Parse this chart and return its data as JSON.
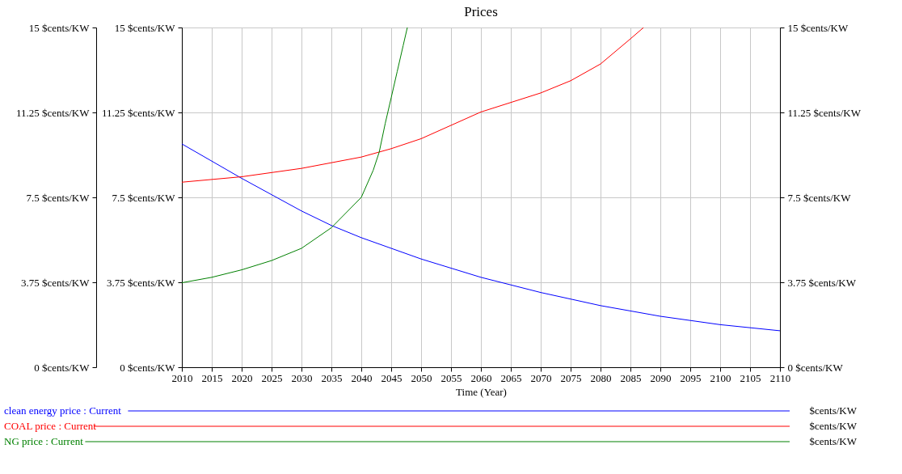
{
  "chart_data": {
    "type": "line",
    "title": "Prices",
    "xlabel": "Time (Year)",
    "xlim": [
      2010,
      2110
    ],
    "xticks": [
      2010,
      2015,
      2020,
      2025,
      2030,
      2035,
      2040,
      2045,
      2050,
      2055,
      2060,
      2065,
      2070,
      2075,
      2080,
      2085,
      2090,
      2095,
      2100,
      2105,
      2110
    ],
    "ylim": [
      0,
      15
    ],
    "yticks": [
      {
        "value": 0,
        "label": "0 $cents/KW"
      },
      {
        "value": 3.75,
        "label": "3.75 $cents/KW"
      },
      {
        "value": 7.5,
        "label": "7.5 $cents/KW"
      },
      {
        "value": 11.25,
        "label": "11.25 $cents/KW"
      },
      {
        "value": 15,
        "label": "15 $cents/KW"
      }
    ],
    "y2lim": [
      0,
      15
    ],
    "y2ticks": [
      {
        "value": 0,
        "label": "0 $cents/KW"
      },
      {
        "value": 3.75,
        "label": "3.75 $cents/KW"
      },
      {
        "value": 7.5,
        "label": "7.5 $cents/KW"
      },
      {
        "value": 11.25,
        "label": "11.25 $cents/KW"
      },
      {
        "value": 15,
        "label": "15 $cents/KW"
      }
    ],
    "y3lim": [
      0,
      15
    ],
    "y3ticks": [
      {
        "value": 0,
        "label": "0 $cents/KW"
      },
      {
        "value": 3.75,
        "label": "3.75 $cents/KW"
      },
      {
        "value": 7.5,
        "label": "7.5 $cents/KW"
      },
      {
        "value": 11.25,
        "label": "11.25 $cents/KW"
      },
      {
        "value": 15,
        "label": "15 $cents/KW"
      }
    ],
    "grid": true,
    "legend": "bottom",
    "annotations": [
      "$cents/KW",
      "$cents/KW",
      "$cents/KW"
    ],
    "series": [
      {
        "name": "clean energy price : Current",
        "color": "#0000ff",
        "axis": "y",
        "x": [
          2010,
          2020,
          2030,
          2035,
          2040,
          2050,
          2060,
          2070,
          2080,
          2090,
          2100,
          2110
        ],
        "values": [
          9.86,
          8.34,
          6.9,
          6.26,
          5.72,
          4.78,
          3.97,
          3.3,
          2.72,
          2.25,
          1.88,
          1.61
        ]
      },
      {
        "name": "COAL price : Current",
        "color": "#ff0000",
        "axis": "y2",
        "x": [
          2010,
          2020,
          2030,
          2040,
          2045,
          2050,
          2060,
          2070,
          2075,
          2080,
          2085,
          2087.2
        ],
        "values": [
          8.17,
          8.41,
          8.78,
          9.28,
          9.65,
          10.09,
          11.27,
          12.11,
          12.65,
          13.39,
          14.5,
          15
        ]
      },
      {
        "name": "NG price : Current",
        "color": "#008000",
        "axis": "y3",
        "x": [
          2010,
          2015,
          2020,
          2025,
          2030,
          2035,
          2040,
          2042,
          2043,
          2044,
          2045,
          2046,
          2047,
          2047.7
        ],
        "values": [
          3.73,
          3.97,
          4.3,
          4.71,
          5.25,
          6.16,
          7.5,
          8.7,
          9.5,
          10.76,
          11.9,
          13.05,
          14.2,
          15
        ]
      }
    ]
  }
}
